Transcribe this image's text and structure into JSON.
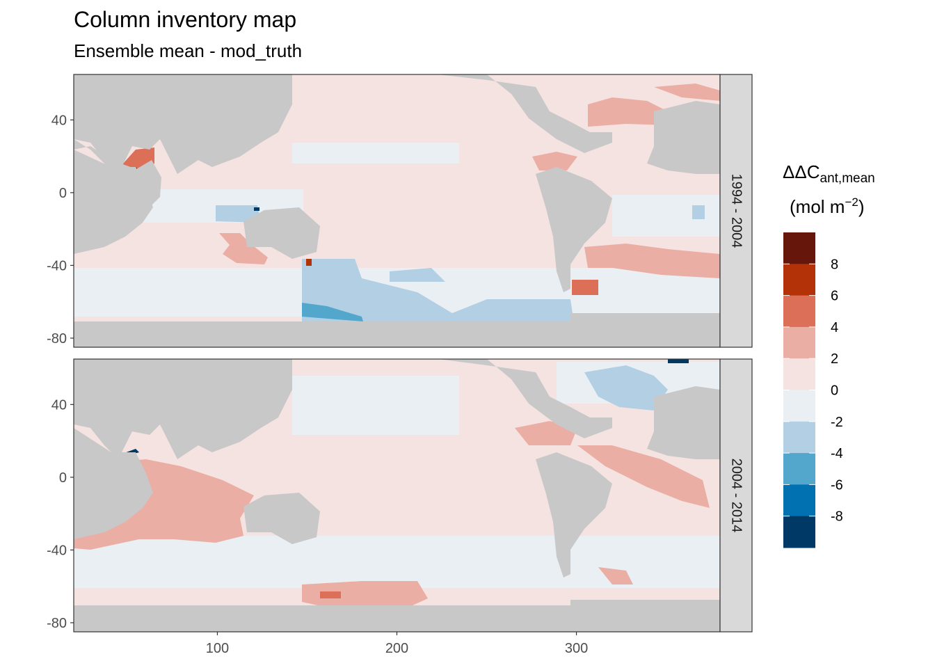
{
  "title": "Column inventory map",
  "subtitle": "Ensemble mean - mod_truth",
  "chart_data": {
    "type": "heatmap",
    "facet_strip": "right",
    "x_ticks": [
      100,
      200,
      300
    ],
    "y_ticks": [
      40,
      0,
      -40,
      -80
    ],
    "xlim": [
      20,
      380
    ],
    "ylim": [
      -85,
      65
    ],
    "land_color": "#c8c8c8",
    "panels": [
      {
        "label": "1994 - 2004"
      },
      {
        "label": "2004 - 2014"
      }
    ],
    "legend": {
      "title_main": "ΔΔC",
      "title_sub": "ant,mean",
      "unit_main": "(mol m",
      "unit_sup": "−2",
      "unit_close": ")",
      "tick_labels": [
        "8",
        "6",
        "4",
        "2",
        "0",
        "-2",
        "-4",
        "-6",
        "-8"
      ],
      "bins": [
        {
          "range": [
            8,
            10
          ],
          "color": "#67160b"
        },
        {
          "range": [
            6,
            8
          ],
          "color": "#b43208"
        },
        {
          "range": [
            4,
            6
          ],
          "color": "#dc6f58"
        },
        {
          "range": [
            2,
            4
          ],
          "color": "#ebaea5"
        },
        {
          "range": [
            0,
            2
          ],
          "color": "#f5e3e1"
        },
        {
          "range": [
            -2,
            0
          ],
          "color": "#eaeff4"
        },
        {
          "range": [
            -4,
            -2
          ],
          "color": "#b3cfe4"
        },
        {
          "range": [
            -6,
            -4
          ],
          "color": "#53a6cc"
        },
        {
          "range": [
            -8,
            -6
          ],
          "color": "#0171b1"
        },
        {
          "range": [
            -10,
            -8
          ],
          "color": "#003966"
        }
      ]
    }
  }
}
